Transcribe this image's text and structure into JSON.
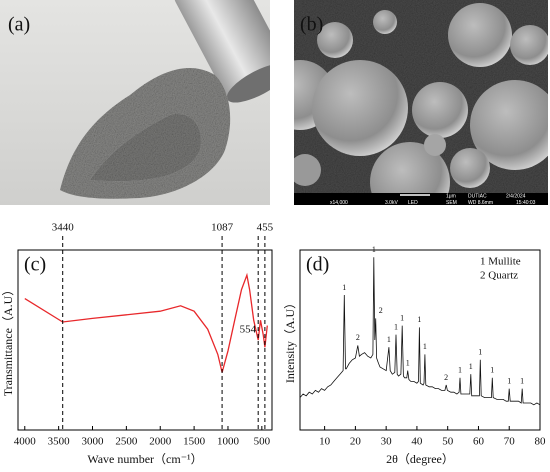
{
  "photos": {
    "a": {
      "label": "(a)"
    },
    "b": {
      "label": "(b)",
      "info": [
        "1μm",
        "DUTIAC",
        "2/4/2024",
        "x14,000",
        "3.0kV",
        "LED",
        "SEM",
        "WD 8.6mm",
        "15:40:03"
      ]
    }
  },
  "chart_data": [
    {
      "type": "line",
      "panel_label": "(c)",
      "x_label": "Wave number（cm⁻¹）",
      "y_label": "Transmittance（A.U）",
      "x": [
        4000,
        3440,
        3000,
        2500,
        2000,
        1700,
        1500,
        1300,
        1150,
        1087,
        1000,
        900,
        800,
        720,
        680,
        620,
        554,
        520,
        480,
        455,
        420
      ],
      "values": [
        73,
        60,
        62,
        64,
        66,
        69,
        66,
        56,
        42,
        32,
        44,
        61,
        78,
        86,
        78,
        61,
        50,
        61,
        53,
        46,
        58
      ],
      "color": "#e8282b",
      "xlim": [
        4100,
        350
      ],
      "ylim": [
        0,
        100
      ],
      "xticks": [
        4000,
        3500,
        3000,
        2500,
        2000,
        1500,
        1000,
        500
      ],
      "vlines": [
        3440,
        1087,
        554,
        455
      ]
    },
    {
      "type": "line",
      "panel_label": "(d)",
      "x_label": "2θ（degree）",
      "y_label": "Intensity（A.U）",
      "x": [
        2,
        3,
        4,
        5,
        6,
        7,
        8,
        9,
        10,
        11,
        12,
        13,
        14,
        15,
        16,
        16.4,
        16.8,
        17,
        18,
        19,
        20,
        20.8,
        21.3,
        22,
        23,
        24,
        25,
        25.7,
        26,
        26.3,
        26.6,
        26.9,
        27.5,
        28,
        29,
        30,
        30.9,
        31.3,
        32,
        32.8,
        33.2,
        33.6,
        34,
        34.8,
        35.2,
        35.6,
        36,
        36.7,
        37,
        37.4,
        38,
        39,
        40,
        40.5,
        40.8,
        41.1,
        42,
        42.3,
        42.6,
        42.9,
        44,
        45,
        46,
        47,
        48,
        49.1,
        49.5,
        49.9,
        51,
        52,
        53,
        53.7,
        54,
        54.3,
        55,
        56,
        57.2,
        57.5,
        57.8,
        59,
        60.3,
        60.6,
        60.9,
        62,
        63,
        64.2,
        64.5,
        64.8,
        66,
        67,
        68,
        69,
        69.7,
        70,
        70.3,
        72,
        73,
        73.9,
        74.2,
        74.5,
        76,
        77,
        78,
        79,
        80
      ],
      "values": [
        18,
        20,
        19,
        21,
        20,
        22,
        21,
        23,
        22,
        24,
        25,
        27,
        29,
        31,
        33,
        75,
        34,
        34,
        37,
        39,
        40,
        47,
        41,
        42,
        43,
        41,
        40,
        42,
        96,
        50,
        62,
        40,
        37,
        35,
        34,
        33,
        46,
        33,
        31,
        32,
        53,
        31,
        30,
        31,
        58,
        30,
        29,
        29,
        33,
        28,
        27,
        27,
        26,
        27,
        57,
        26,
        25,
        26,
        42,
        25,
        24,
        24,
        23,
        23,
        22,
        22,
        25,
        22,
        21,
        21,
        20,
        21,
        29,
        20,
        20,
        20,
        20,
        31,
        19,
        19,
        19,
        39,
        19,
        18,
        18,
        18,
        29,
        18,
        17,
        17,
        17,
        16,
        16,
        23,
        16,
        16,
        16,
        15,
        23,
        15,
        15,
        15,
        14,
        15,
        14
      ],
      "color": "#111111",
      "xlim": [
        2,
        80
      ],
      "ylim": [
        0,
        100
      ],
      "xticks": [
        10,
        20,
        30,
        40,
        50,
        60,
        70,
        80
      ],
      "peaks": [
        {
          "x": 16.4,
          "label": "1"
        },
        {
          "x": 20.8,
          "label": "2"
        },
        {
          "x": 26.0,
          "label": "1"
        },
        {
          "x": 26.6,
          "label": "2"
        },
        {
          "x": 30.9,
          "label": "1"
        },
        {
          "x": 33.2,
          "label": "1"
        },
        {
          "x": 35.2,
          "label": "1"
        },
        {
          "x": 37.0,
          "label": "1"
        },
        {
          "x": 40.8,
          "label": "1"
        },
        {
          "x": 42.6,
          "label": "1"
        },
        {
          "x": 49.5,
          "label": "2"
        },
        {
          "x": 54.0,
          "label": "1"
        },
        {
          "x": 57.5,
          "label": "1"
        },
        {
          "x": 60.6,
          "label": "1"
        },
        {
          "x": 64.5,
          "label": "1"
        },
        {
          "x": 70.0,
          "label": "1"
        },
        {
          "x": 74.2,
          "label": "1"
        }
      ],
      "legend_text": [
        "1 Mullite",
        "2 Quartz"
      ]
    }
  ]
}
